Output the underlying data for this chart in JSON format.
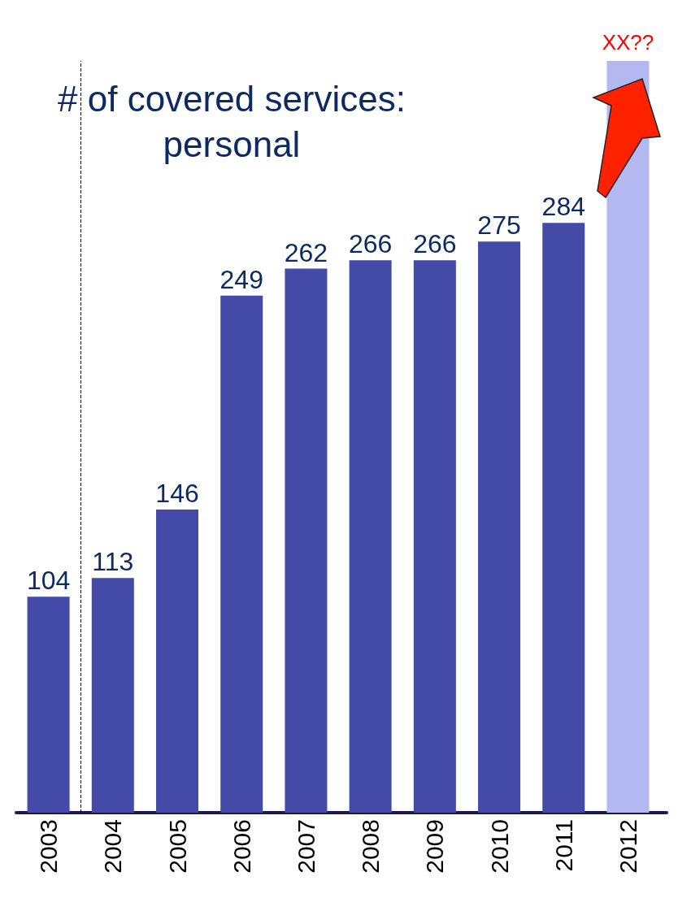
{
  "chart_data": {
    "type": "bar",
    "title": "# of covered services:\npersonal",
    "x": [
      2003,
      2004,
      2005,
      2006,
      2007,
      2008,
      2009,
      2010,
      2011,
      2012
    ],
    "xlim": [
      2002.5,
      2012.6
    ],
    "xticks": [
      2003,
      2004,
      2005,
      2006,
      2007,
      2008,
      2009,
      2010,
      2011,
      2012
    ],
    "values": [
      104,
      113,
      146,
      249,
      262,
      266,
      266,
      275,
      284,
      362
    ],
    "colors": [
      "#434aa8",
      "#434aa8",
      "#434aa8",
      "#434aa8",
      "#434aa8",
      "#434aa8",
      "#434aa8",
      "#434aa8",
      "#434aa8",
      "#b3b8f0"
    ],
    "value_labels": [
      "104",
      "113",
      "146",
      "249",
      "262",
      "266",
      "266",
      "275",
      "284",
      null
    ],
    "annotations": [
      {
        "text": "XX??",
        "x": 2012,
        "y": 362
      }
    ],
    "ref_lines": [
      {
        "axis": "x",
        "value": 2003.5,
        "line_style": "dashed",
        "color": "#000000"
      }
    ],
    "grid": false
  }
}
